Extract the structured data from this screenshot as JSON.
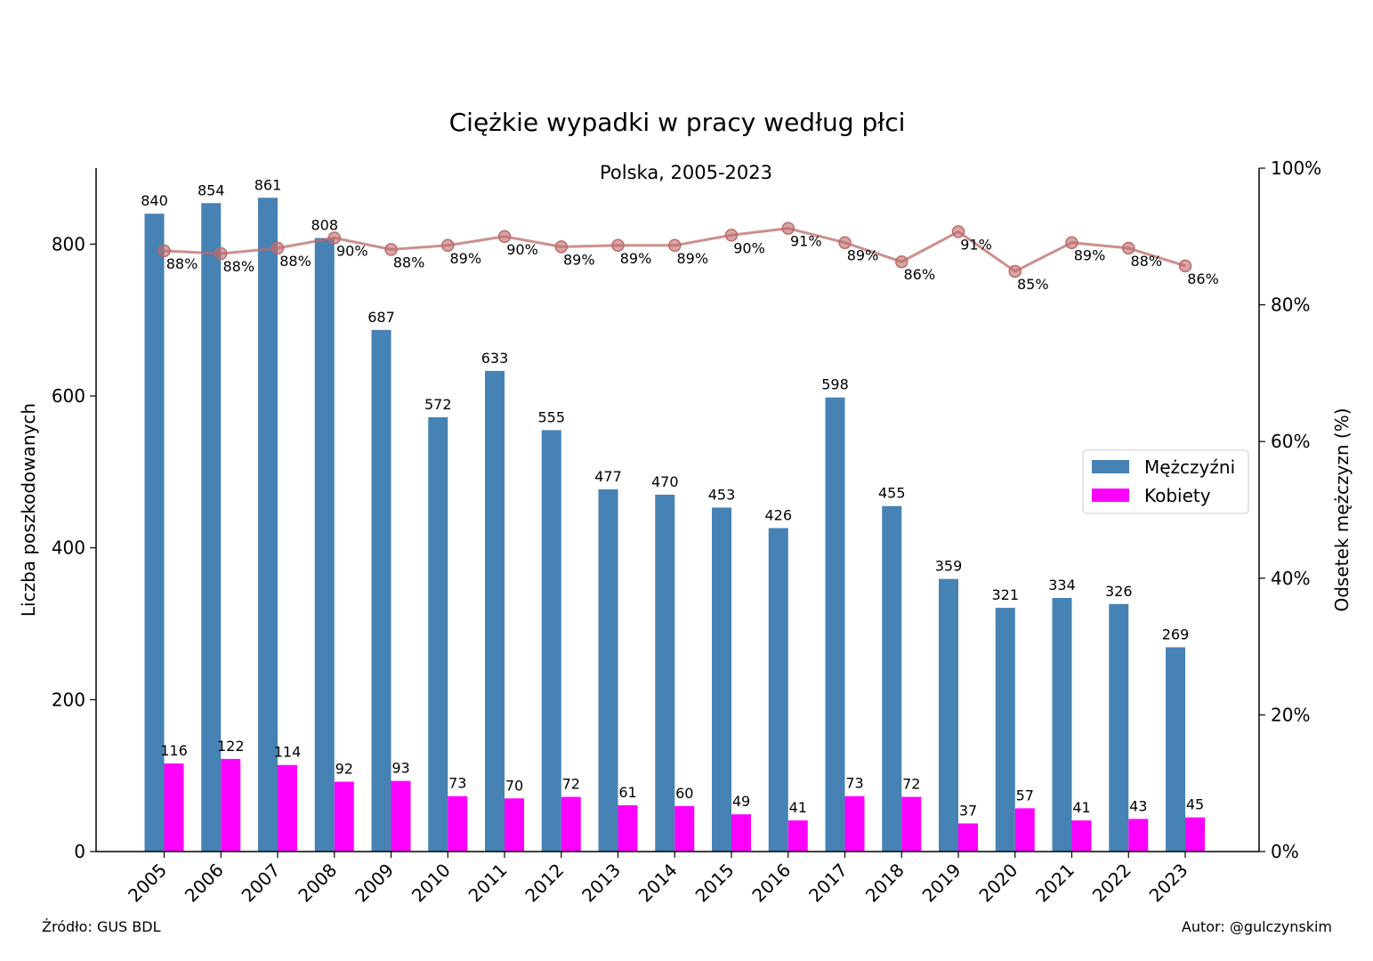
{
  "chart_data": {
    "type": "bar",
    "title": "Ciężkie wypadki w pracy według płci",
    "subtitle": "Polska, 2005-2023",
    "xlabel": "",
    "ylabel": "Liczba poszkodowanych",
    "y2label": "Odsetek mężczyzn (%)",
    "ylim": [
      0,
      900
    ],
    "yticks": [
      0,
      200,
      400,
      600,
      800
    ],
    "y2lim": [
      0,
      100
    ],
    "y2ticks": [
      0,
      20,
      40,
      60,
      80,
      100
    ],
    "y2tick_labels": [
      "0%",
      "20%",
      "40%",
      "60%",
      "80%",
      "100%"
    ],
    "categories": [
      "2005",
      "2006",
      "2007",
      "2008",
      "2009",
      "2010",
      "2011",
      "2012",
      "2013",
      "2014",
      "2015",
      "2016",
      "2017",
      "2018",
      "2019",
      "2020",
      "2021",
      "2022",
      "2023"
    ],
    "series": [
      {
        "name": "Mężczyźni",
        "color": "#4682b4",
        "values": [
          840,
          854,
          861,
          808,
          687,
          572,
          633,
          555,
          477,
          470,
          453,
          426,
          598,
          455,
          359,
          321,
          334,
          326,
          269
        ]
      },
      {
        "name": "Kobiety",
        "color": "#ff00ff",
        "values": [
          116,
          122,
          114,
          92,
          93,
          73,
          70,
          72,
          61,
          60,
          49,
          41,
          73,
          72,
          37,
          57,
          41,
          43,
          45
        ]
      }
    ],
    "line": {
      "name": "Odsetek mężczyzn (%)",
      "color": "#bc6a6a",
      "values": [
        87.9,
        87.5,
        88.3,
        89.8,
        88.1,
        88.7,
        90.0,
        88.5,
        88.7,
        88.7,
        90.2,
        91.2,
        89.1,
        86.3,
        90.7,
        84.9,
        89.1,
        88.3,
        85.7
      ],
      "labels": [
        "88%",
        "88%",
        "88%",
        "90%",
        "88%",
        "89%",
        "90%",
        "89%",
        "89%",
        "89%",
        "90%",
        "91%",
        "89%",
        "86%",
        "91%",
        "85%",
        "89%",
        "88%",
        "86%"
      ]
    },
    "legend_position": "center-right"
  },
  "footer": {
    "source": "Źródło: GUS BDL",
    "author": "Autor: @gulczynskim"
  }
}
